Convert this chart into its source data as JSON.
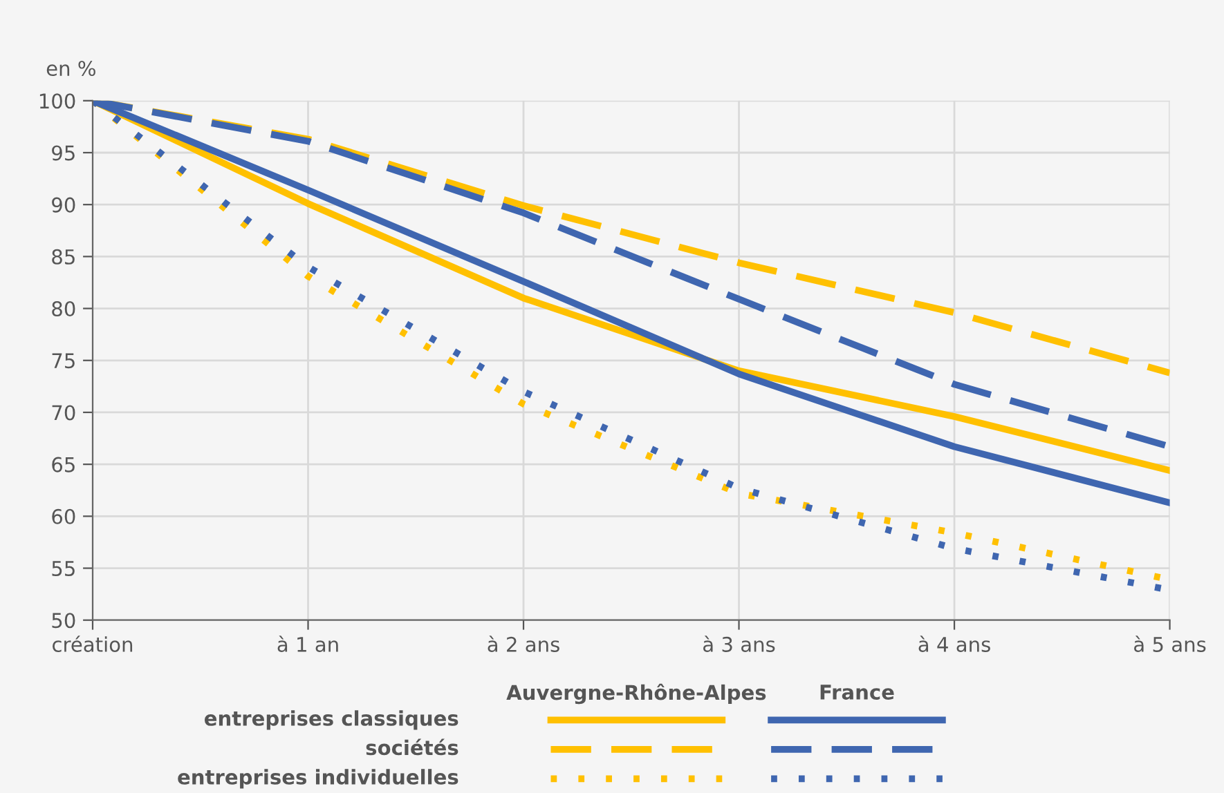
{
  "chart_data": {
    "type": "line",
    "ylabel": "en %",
    "categories": [
      "création",
      "à 1 an",
      "à 2 ans",
      "à 3 ans",
      "à 4 ans",
      "à 5 ans"
    ],
    "series": [
      {
        "color": "#ffc000",
        "line_style": "solid",
        "values": [
          100,
          90.1,
          81.0,
          74.0,
          69.6,
          64.4
        ]
      },
      {
        "color": "#ffc000",
        "line_style": "dashed",
        "values": [
          100,
          96.3,
          89.9,
          84.4,
          79.6,
          73.8
        ]
      },
      {
        "color": "#ffc000",
        "line_style": "dotted",
        "values": [
          100,
          83.1,
          70.8,
          62.2,
          58.4,
          53.9
        ]
      },
      {
        "color": "#3f66b0",
        "line_style": "solid",
        "values": [
          100,
          91.4,
          82.6,
          73.7,
          66.7,
          61.3
        ]
      },
      {
        "color": "#3f66b0",
        "line_style": "dashed",
        "values": [
          100,
          96.1,
          89.2,
          80.9,
          72.7,
          66.7
        ]
      },
      {
        "color": "#3f66b0",
        "line_style": "dotted",
        "values": [
          100,
          84.0,
          72.0,
          62.7,
          56.9,
          52.9
        ]
      }
    ],
    "annotations": [
      "Auvergne-Rhône-Alpes",
      "France",
      "entreprises classiques",
      "sociétés",
      "entreprises individuelles"
    ],
    "ylim": [
      50,
      100
    ],
    "yticks": [
      50,
      55,
      60,
      65,
      70,
      75,
      80,
      85,
      90,
      95,
      100
    ],
    "grid": true,
    "marker": "none"
  }
}
